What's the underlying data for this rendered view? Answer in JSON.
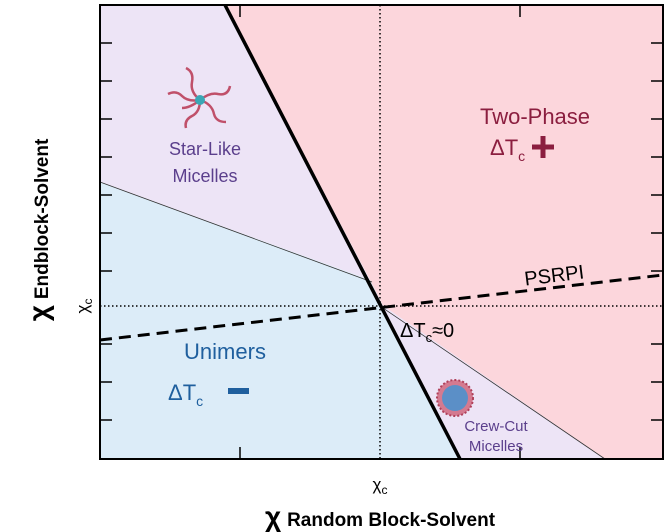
{
  "axes": {
    "x_label": {
      "symbol": "χ",
      "text": "Random Block-Solvent"
    },
    "y_label": {
      "symbol": "χ",
      "text": "Endblock-Solvent"
    },
    "x_tick": {
      "main": "χ",
      "sub": "c"
    },
    "y_tick": {
      "main": "χ",
      "sub": "c"
    }
  },
  "regions": {
    "two_phase": {
      "label": "Two-Phase",
      "delta": {
        "main": "ΔT",
        "sub": "c"
      }
    },
    "star_like": {
      "lines": [
        "Star-Like",
        "Micelles"
      ]
    },
    "unimers": {
      "label": "Unimers",
      "delta": {
        "main": "ΔT",
        "sub": "c"
      }
    },
    "crew_cut": {
      "lines": [
        "Crew-Cut",
        "Micelles"
      ]
    },
    "boundary": {
      "main": "ΔT",
      "sub": "c",
      "suffix": "≈0"
    }
  },
  "lines": {
    "psrpi": "PSRPI"
  }
}
